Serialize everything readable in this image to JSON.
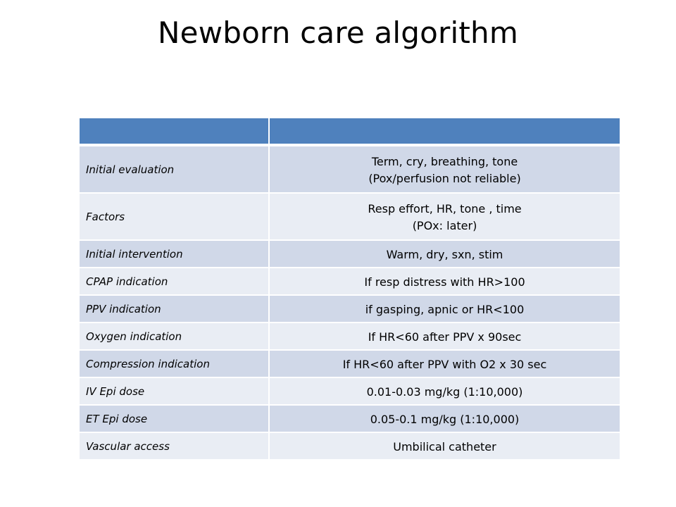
{
  "slide": {
    "title": "Newborn care algorithm"
  },
  "table": {
    "header": [
      "",
      ""
    ],
    "rows": [
      {
        "label": "Initial evaluation",
        "value_line1": "Term, cry, breathing, tone",
        "value_line2": "(Pox/perfusion not reliable)"
      },
      {
        "label": "Factors",
        "value_line1": "Resp effort, HR, tone , time",
        "value_line2": "(POx: later)"
      },
      {
        "label": "Initial intervention",
        "value_line1": "Warm, dry, sxn, stim",
        "value_line2": ""
      },
      {
        "label": "CPAP indication",
        "value_line1": "If resp distress with HR>100",
        "value_line2": ""
      },
      {
        "label": "PPV indication",
        "value_line1": "if gasping, apnic or HR<100",
        "value_line2": ""
      },
      {
        "label": "Oxygen indication",
        "value_line1": "If HR<60 after PPV x 90sec",
        "value_line2": ""
      },
      {
        "label": "Compression indication",
        "value_line1": "If HR<60 after PPV with O2 x 30 sec",
        "value_line2": ""
      },
      {
        "label": "IV Epi dose",
        "value_line1": "0.01-0.03 mg/kg (1:10,000)",
        "value_line2": ""
      },
      {
        "label": "ET Epi dose",
        "value_line1": "0.05-0.1 mg/kg (1:10,000)",
        "value_line2": ""
      },
      {
        "label": "Vascular access",
        "value_line1": "Umbilical catheter",
        "value_line2": ""
      }
    ]
  },
  "colors": {
    "header_fill": "#4f81bd",
    "row_band_dark": "#d0d8e8",
    "row_band_light": "#e9edf4",
    "title_text": "#000000"
  }
}
